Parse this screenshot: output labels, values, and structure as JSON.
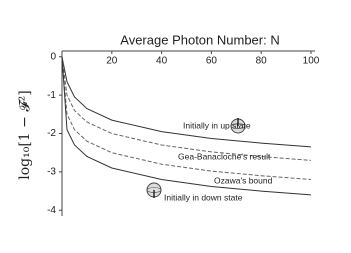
{
  "chart_data": {
    "type": "line",
    "title": "Average Photon Number: N",
    "y_label": "log₁₀[1 − 𝓕²]",
    "xlim": [
      0,
      100
    ],
    "xticks": [
      20,
      40,
      60,
      80,
      100
    ],
    "ylim": [
      -4.15,
      0.15
    ],
    "yticks": [
      0,
      -1,
      -2,
      -3,
      -4
    ],
    "x": [
      0,
      2,
      5,
      10,
      20,
      40,
      60,
      80,
      100
    ],
    "series": [
      {
        "color": "#333333",
        "dashed": false,
        "values": [
          0,
          -0.65,
          -1.05,
          -1.35,
          -1.65,
          -1.95,
          -2.13,
          -2.25,
          -2.35
        ]
      },
      {
        "color": "#666666",
        "dashed": true,
        "values": [
          0,
          -1.0,
          -1.4,
          -1.7,
          -2.0,
          -2.3,
          -2.48,
          -2.6,
          -2.7
        ]
      },
      {
        "color": "#666666",
        "dashed": true,
        "values": [
          0,
          -1.5,
          -1.9,
          -2.2,
          -2.5,
          -2.8,
          -2.98,
          -3.1,
          -3.2
        ]
      },
      {
        "color": "#333333",
        "dashed": false,
        "values": [
          0,
          -1.9,
          -2.3,
          -2.6,
          -2.9,
          -3.2,
          -3.38,
          -3.5,
          -3.6
        ]
      }
    ],
    "annotations": [
      "Initially in up state",
      "Gea-Banacloche's  result",
      "Ozawa's  bound",
      "Initially in down state"
    ]
  }
}
